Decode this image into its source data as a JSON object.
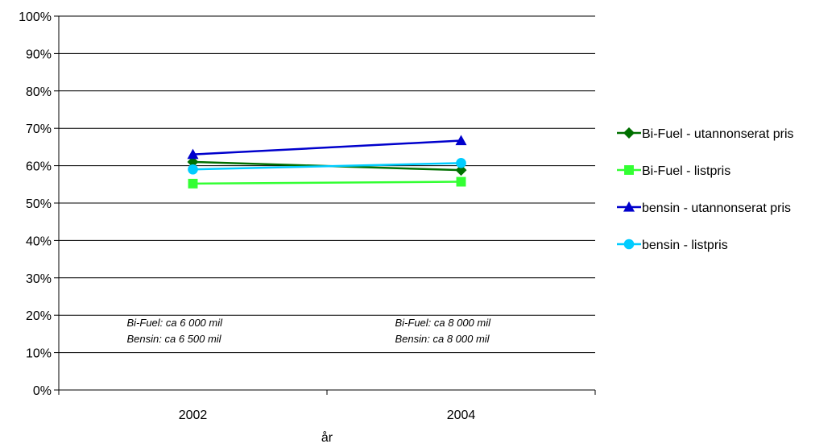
{
  "chart_data": {
    "type": "line",
    "title": "",
    "xlabel": "år",
    "ylabel": "",
    "categories": [
      "2002",
      "2004"
    ],
    "x_slots": 2,
    "ylim": [
      0,
      100
    ],
    "y_ticks": [
      0,
      10,
      20,
      30,
      40,
      50,
      60,
      70,
      80,
      90,
      100
    ],
    "y_tick_labels": [
      "0%",
      "10%",
      "20%",
      "30%",
      "40%",
      "50%",
      "60%",
      "70%",
      "80%",
      "90%",
      "100%"
    ],
    "grid": true,
    "legend_position": "right",
    "series": [
      {
        "name": "Bi-Fuel - utannonserat pris",
        "values": [
          61,
          58.8
        ],
        "color": "#007000",
        "marker": "diamond"
      },
      {
        "name": "Bi-Fuel - listpris",
        "values": [
          55.2,
          55.7
        ],
        "color": "#33ff33",
        "marker": "square"
      },
      {
        "name": "bensin - utannonserat pris",
        "values": [
          63,
          66.7
        ],
        "color": "#0000cc",
        "marker": "triangle"
      },
      {
        "name": "bensin - listpris",
        "values": [
          59,
          60.7
        ],
        "color": "#00ccff",
        "marker": "circle"
      }
    ],
    "annotations": [
      {
        "category": "2002",
        "lines": [
          "Bi-Fuel: ca 6 000 mil",
          "Bensin: ca 6 500 mil"
        ]
      },
      {
        "category": "2004",
        "lines": [
          "Bi-Fuel: ca 8 000 mil",
          "Bensin: ca 8 000 mil"
        ]
      }
    ]
  }
}
